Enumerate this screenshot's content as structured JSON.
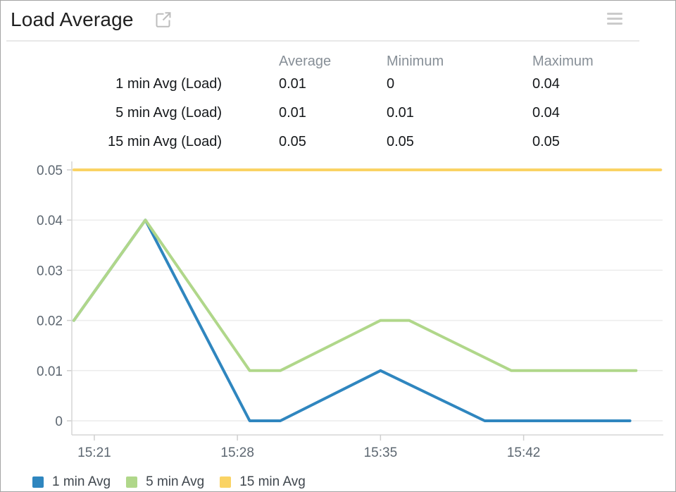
{
  "header": {
    "title": "Load Average",
    "icons": {
      "open_icon": "external-link-icon",
      "menu_icon": "hamburger-menu-icon"
    }
  },
  "stats_table": {
    "columns": [
      "Average",
      "Minimum",
      "Maximum"
    ],
    "rows": [
      {
        "label": "1 min Avg (Load)",
        "average": "0.01",
        "minimum": "0",
        "maximum": "0.04"
      },
      {
        "label": "5 min Avg (Load)",
        "average": "0.01",
        "minimum": "0.01",
        "maximum": "0.04"
      },
      {
        "label": "15 min Avg (Load)",
        "average": "0.05",
        "minimum": "0.05",
        "maximum": "0.05"
      }
    ]
  },
  "chart_data": {
    "type": "line",
    "title": "Load Average",
    "xlabel": "",
    "ylabel": "",
    "grid": true,
    "legend_position": "bottom",
    "x_axis": {
      "ticks": [
        "15:21",
        "15:28",
        "15:35",
        "15:42"
      ],
      "range": [
        "15:19.9",
        "15:48.8"
      ]
    },
    "y_axis": {
      "ticks": [
        0,
        0.01,
        0.02,
        0.03,
        0.04,
        0.05
      ],
      "range": [
        0,
        0.05
      ]
    },
    "series": [
      {
        "name": "1 min Avg",
        "color": "#2f86bf",
        "points": [
          [
            "15:20",
            0.02
          ],
          [
            "15:23.5",
            0.04
          ],
          [
            "15:28.6",
            0
          ],
          [
            "15:30.1",
            0
          ],
          [
            "15:35",
            0.01
          ],
          [
            "15:40.1",
            0
          ],
          [
            "15:47.2",
            0
          ]
        ]
      },
      {
        "name": "5 min Avg",
        "color": "#b0d78a",
        "points": [
          [
            "15:20",
            0.02
          ],
          [
            "15:23.5",
            0.04
          ],
          [
            "15:28.6",
            0.01
          ],
          [
            "15:30.1",
            0.01
          ],
          [
            "15:35",
            0.02
          ],
          [
            "15:36.4",
            0.02
          ],
          [
            "15:41.4",
            0.01
          ],
          [
            "15:47.5",
            0.01
          ]
        ]
      },
      {
        "name": "15 min Avg",
        "color": "#fad364",
        "points": [
          [
            "15:20",
            0.05
          ],
          [
            "15:48.7",
            0.05
          ]
        ]
      }
    ]
  }
}
